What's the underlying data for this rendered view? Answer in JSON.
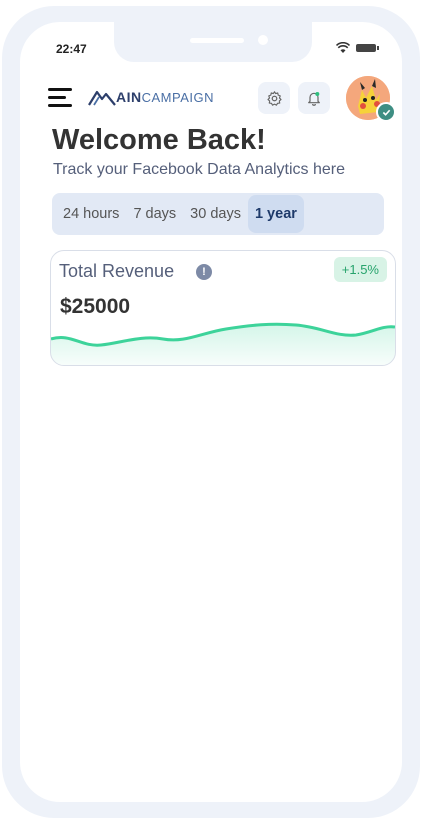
{
  "status_bar": {
    "time": "22:47"
  },
  "header": {
    "logo_part1": "AIN",
    "logo_part2": "CAMPAIGN",
    "menu_icon": "hamburger-menu-icon",
    "settings_icon": "gear-icon",
    "notification_icon": "bell-icon"
  },
  "hero": {
    "title": "Welcome Back!",
    "subtitle": "Track your Facebook Data Analytics here"
  },
  "tabs": [
    {
      "label": "24 hours",
      "active": false
    },
    {
      "label": "7 days",
      "active": false
    },
    {
      "label": "30 days",
      "active": false
    },
    {
      "label": "1 year",
      "active": true
    }
  ],
  "revenue_card": {
    "title": "Total Revenue",
    "info_symbol": "!",
    "change": "+1.5%",
    "amount": "$25000",
    "trend_color": "#3dd39a"
  },
  "colors": {
    "accent": "#1e3a6a",
    "positive": "#27a36c",
    "tab_bg": "#e2e9f5"
  }
}
